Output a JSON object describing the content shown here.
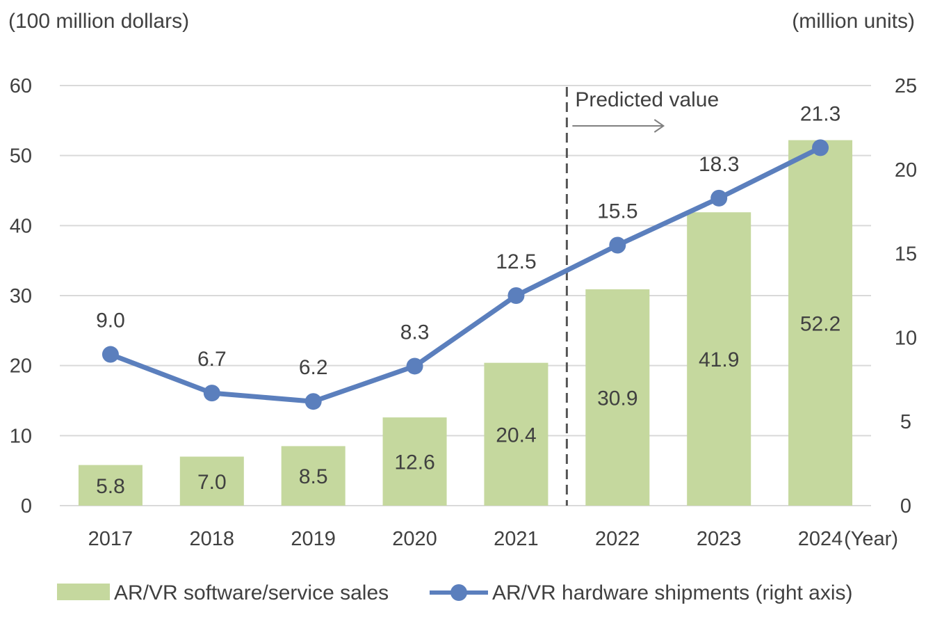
{
  "chart_data": {
    "type": "bar",
    "categories": [
      "2017",
      "2018",
      "2019",
      "2020",
      "2021",
      "2022",
      "2023",
      "2024"
    ],
    "x_axis_suffix": "(Year)",
    "left_axis": {
      "unit": "(100 million dollars)",
      "ylim": [
        0,
        60
      ],
      "ticks": [
        0,
        10,
        20,
        30,
        40,
        50,
        60
      ]
    },
    "right_axis": {
      "unit": "(million units)",
      "ylim": [
        0,
        25
      ],
      "ticks": [
        0,
        5,
        10,
        15,
        20,
        25
      ]
    },
    "series": [
      {
        "name": "AR/VR software/service sales",
        "type": "bar",
        "axis": "left",
        "color": "#c5d89e",
        "values": [
          5.8,
          7.0,
          8.5,
          12.6,
          20.4,
          30.9,
          41.9,
          52.2
        ],
        "value_labels": [
          "5.8",
          "7.0",
          "8.5",
          "12.6",
          "20.4",
          "30.9",
          "41.9",
          "52.2"
        ]
      },
      {
        "name": "AR/VR hardware shipments (right axis)",
        "type": "line",
        "axis": "right",
        "color": "#5b7fbd",
        "values": [
          9.0,
          6.7,
          6.2,
          8.3,
          12.5,
          15.5,
          18.3,
          21.3
        ],
        "value_labels": [
          "9.0",
          "6.7",
          "6.2",
          "8.3",
          "12.5",
          "15.5",
          "18.3",
          "21.3"
        ]
      }
    ],
    "annotation": {
      "text": "Predicted value",
      "from_category": "2022",
      "line_style": "dashed"
    },
    "grid": true,
    "legend_position": "bottom"
  }
}
